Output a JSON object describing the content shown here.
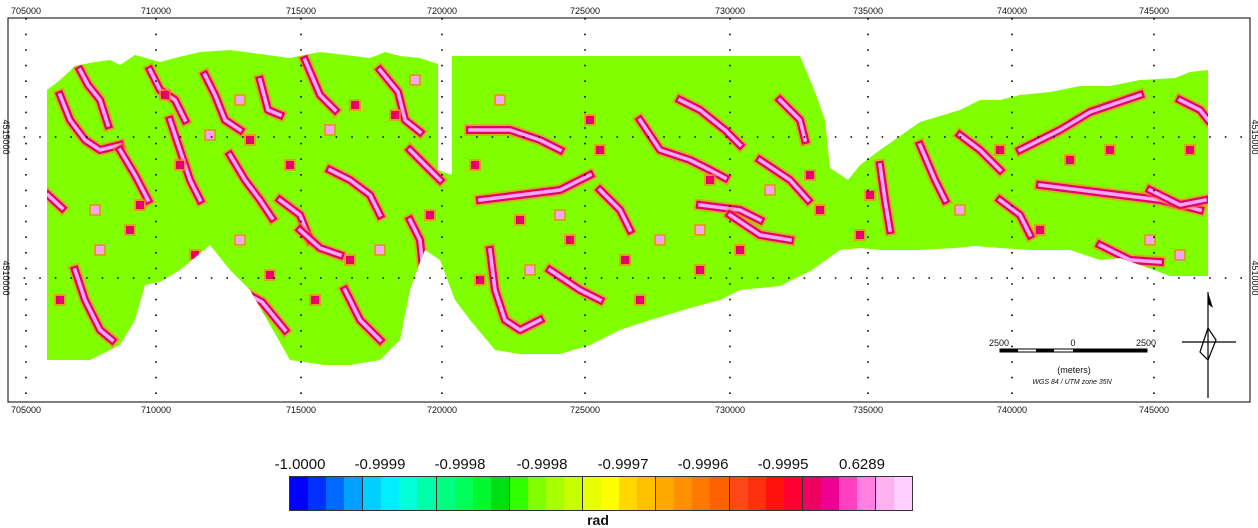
{
  "map": {
    "x_ticks_top": [
      "705000",
      "710000",
      "715000",
      "720000",
      "725000",
      "730000",
      "735000",
      "740000",
      "745000"
    ],
    "x_ticks_bottom": [
      "705000",
      "710000",
      "715000",
      "720000",
      "725000",
      "730000",
      "735000",
      "740000",
      "745000"
    ],
    "y_ticks_left": [
      "4515000",
      "4510000"
    ],
    "y_ticks_right": [
      "4515000",
      "4510000"
    ],
    "background_color": "#ffffff",
    "base_fill_color": "#80ff00",
    "anomaly_colors": {
      "outline": "#e8006a",
      "core": "#f4a6f4",
      "hot": "#ff7e22"
    }
  },
  "scale_bar": {
    "left_label": "2500",
    "center_label": "0",
    "right_label": "2500",
    "units_label": "(meters)",
    "crs_label": "WGS 84 / UTM zone 35N"
  },
  "north_arrow": {
    "icon": "north-arrow-icon"
  },
  "legend": {
    "title": "rad",
    "labels": [
      "-1.0000",
      "-0.9999",
      "-0.9998",
      "-0.9998",
      "-0.9997",
      "-0.9996",
      "-0.9995",
      "0.6289"
    ],
    "colors": [
      "#0000ff",
      "#0030ff",
      "#0068ff",
      "#00a0ff",
      "#00d0ff",
      "#00f0ff",
      "#00ffd8",
      "#00ffa8",
      "#00ff80",
      "#00ff58",
      "#00f830",
      "#00e010",
      "#30ff00",
      "#80ff00",
      "#a8ff00",
      "#c8ff00",
      "#e8ff00",
      "#ffff00",
      "#ffd800",
      "#ffc000",
      "#ffa800",
      "#ff9000",
      "#ff7800",
      "#ff6000",
      "#ff4818",
      "#ff3010",
      "#ff1010",
      "#ff0030",
      "#f00060",
      "#f00090",
      "#ff40c0",
      "#ff80e0",
      "#ffb0f0",
      "#ffd0ff"
    ]
  }
}
